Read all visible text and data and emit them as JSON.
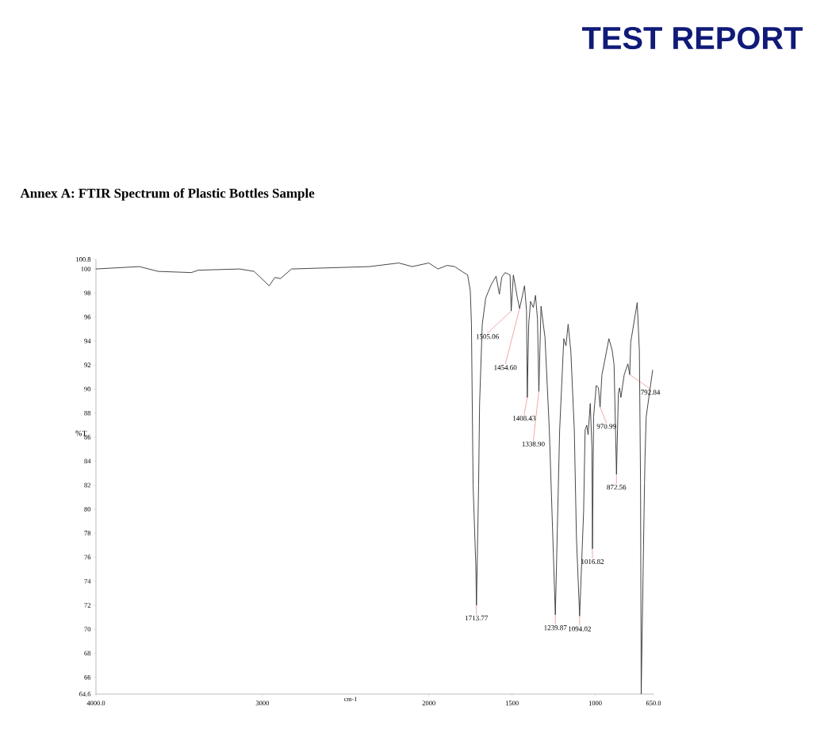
{
  "chart_data": {
    "type": "line",
    "title": "Annex A: FTIR Spectrum of Plastic Bottles Sample",
    "annotations": [
      "TEST REPORT",
      {
        "text": "1713.77",
        "x": 1713.77,
        "y": 72.0
      },
      {
        "text": "1505.06",
        "x": 1505.06,
        "y": 96.5
      },
      {
        "text": "1454.60",
        "x": 1454.6,
        "y": 96.7
      },
      {
        "text": "1408.43",
        "x": 1408.43,
        "y": 89.3
      },
      {
        "text": "1338.90",
        "x": 1338.9,
        "y": 89.8
      },
      {
        "text": "1239.87",
        "x": 1239.87,
        "y": 71.2
      },
      {
        "text": "1094.02",
        "x": 1094.02,
        "y": 71.1
      },
      {
        "text": "1016.82",
        "x": 1016.82,
        "y": 76.7
      },
      {
        "text": "970.99",
        "x": 970.99,
        "y": 88.5
      },
      {
        "text": "872.56",
        "x": 872.56,
        "y": 82.9
      },
      {
        "text": "792.84",
        "x": 792.84,
        "y": 91.2
      }
    ],
    "xlabel": "cm-1",
    "ylabel": "%T",
    "color": "#333333",
    "x": [
      4000,
      3739,
      3627,
      3427,
      3385,
      3137,
      3050,
      2959,
      2925,
      2892,
      2825,
      2356,
      2181,
      2100,
      2000,
      1945,
      1890,
      1845,
      1801,
      1767,
      1751,
      1744,
      1734,
      1718,
      1713.77,
      1701,
      1695,
      1679,
      1658,
      1625,
      1596,
      1576,
      1562,
      1542,
      1512,
      1505.06,
      1492,
      1468,
      1454.6,
      1425,
      1413,
      1408.43,
      1400,
      1389,
      1372,
      1359,
      1347,
      1338.9,
      1326,
      1302,
      1276,
      1239.87,
      1214,
      1189,
      1176,
      1163,
      1147,
      1126,
      1113,
      1094.02,
      1070,
      1061,
      1051,
      1043,
      1030,
      1020,
      1016.82,
      1010,
      994,
      981,
      970.99,
      960,
      944,
      918,
      898,
      887,
      872.56,
      861,
      854,
      846,
      826,
      804,
      792.84,
      787,
      748,
      735,
      728,
      724,
      704,
      701,
      694,
      655
    ],
    "values": [
      100.0,
      100.2,
      99.8,
      99.7,
      99.9,
      100.0,
      99.8,
      98.6,
      99.3,
      99.2,
      100.0,
      100.2,
      100.5,
      100.2,
      100.5,
      100.0,
      100.3,
      100.2,
      99.8,
      99.5,
      98.2,
      95.4,
      82.0,
      75.4,
      72.0,
      82.0,
      88.8,
      95.4,
      97.6,
      98.7,
      99.4,
      97.9,
      99.3,
      99.7,
      99.5,
      96.5,
      99.5,
      97.6,
      96.7,
      98.6,
      96.5,
      89.3,
      95.4,
      97.3,
      96.8,
      97.8,
      95.8,
      89.8,
      96.9,
      94.3,
      86.6,
      71.2,
      86.6,
      94.2,
      93.6,
      95.4,
      93.2,
      86.6,
      77.6,
      71.1,
      79.8,
      86.6,
      87.0,
      86.2,
      88.8,
      85.1,
      76.7,
      87.7,
      90.3,
      90.1,
      88.5,
      91.2,
      92.3,
      94.2,
      93.2,
      92.0,
      82.9,
      89.7,
      90.1,
      89.3,
      91.2,
      92.1,
      91.2,
      93.9,
      97.2,
      93.2,
      82.2,
      64.6,
      82.2,
      84.4,
      87.7,
      91.6
    ],
    "xlim": [
      4000,
      650
    ],
    "xticks": [
      {
        "value": 4000,
        "label": "4000.0"
      },
      3000,
      2000,
      1500,
      1000,
      {
        "value": 650,
        "label": "650.0"
      }
    ],
    "ylim": [
      64.6,
      100.8
    ],
    "yticks": [
      64.6,
      66,
      68,
      70,
      72,
      74,
      76,
      78,
      80,
      82,
      84,
      86,
      88,
      90,
      92,
      94,
      96,
      98,
      100,
      100.8
    ],
    "grid": false,
    "marker": "none",
    "line_style": "solid"
  }
}
